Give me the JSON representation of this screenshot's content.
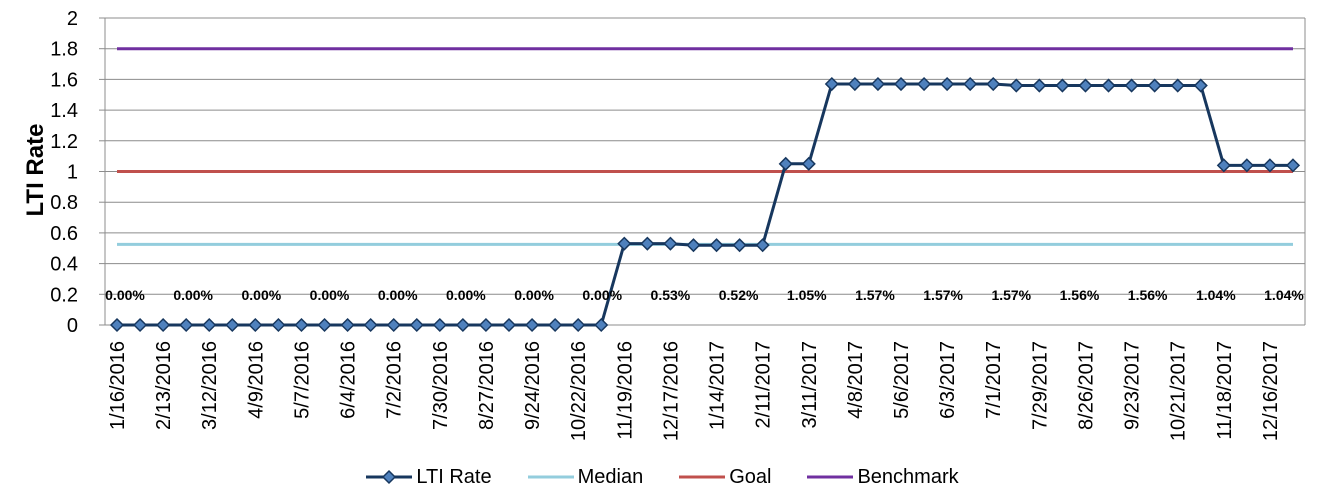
{
  "chart_data": {
    "type": "line",
    "title": "",
    "xlabel": "",
    "ylabel": "LTI Rate",
    "ylim": [
      0,
      2
    ],
    "yticks": [
      "0",
      "0.2",
      "0.4",
      "0.6",
      "0.8",
      "1",
      "1.2",
      "1.4",
      "1.6",
      "1.8",
      "2"
    ],
    "grid": true,
    "legend_position": "bottom",
    "x_tick_labels": [
      "1/16/2016",
      "2/13/2016",
      "3/12/2016",
      "4/9/2016",
      "5/7/2016",
      "6/4/2016",
      "7/2/2016",
      "7/30/2016",
      "8/27/2016",
      "9/24/2016",
      "10/22/2016",
      "11/19/2016",
      "12/17/2016",
      "1/14/2017",
      "2/11/2017",
      "3/11/2017",
      "4/8/2017",
      "5/6/2017",
      "6/3/2017",
      "7/1/2017",
      "7/29/2017",
      "8/26/2017",
      "9/23/2017",
      "10/21/2017",
      "11/18/2017",
      "12/16/2017"
    ],
    "data_labels": [
      "0.00%",
      "0.00%",
      "0.00%",
      "0.00%",
      "0.00%",
      "0.00%",
      "0.00%",
      "0.00%",
      "0.53%",
      "0.52%",
      "1.05%",
      "1.57%",
      "1.57%",
      "1.57%",
      "1.56%",
      "1.56%",
      "1.04%",
      "1.04%"
    ],
    "series": [
      {
        "name": "LTI Rate",
        "color": "#17375e",
        "marker": "diamond",
        "values": [
          0,
          0,
          0,
          0,
          0,
          0,
          0,
          0,
          0,
          0,
          0,
          0,
          0,
          0,
          0,
          0,
          0,
          0,
          0,
          0,
          0,
          0,
          0.53,
          0.53,
          0.53,
          0.52,
          0.52,
          0.52,
          0.52,
          1.05,
          1.05,
          1.57,
          1.57,
          1.57,
          1.57,
          1.57,
          1.57,
          1.57,
          1.57,
          1.56,
          1.56,
          1.56,
          1.56,
          1.56,
          1.56,
          1.56,
          1.56,
          1.56,
          1.04,
          1.04,
          1.04,
          1.04
        ]
      },
      {
        "name": "Median",
        "color": "#93cddd",
        "constant": 0.525
      },
      {
        "name": "Goal",
        "color": "#c0504d",
        "constant": 1.0
      },
      {
        "name": "Benchmark",
        "color": "#7030a0",
        "constant": 1.8
      }
    ]
  }
}
